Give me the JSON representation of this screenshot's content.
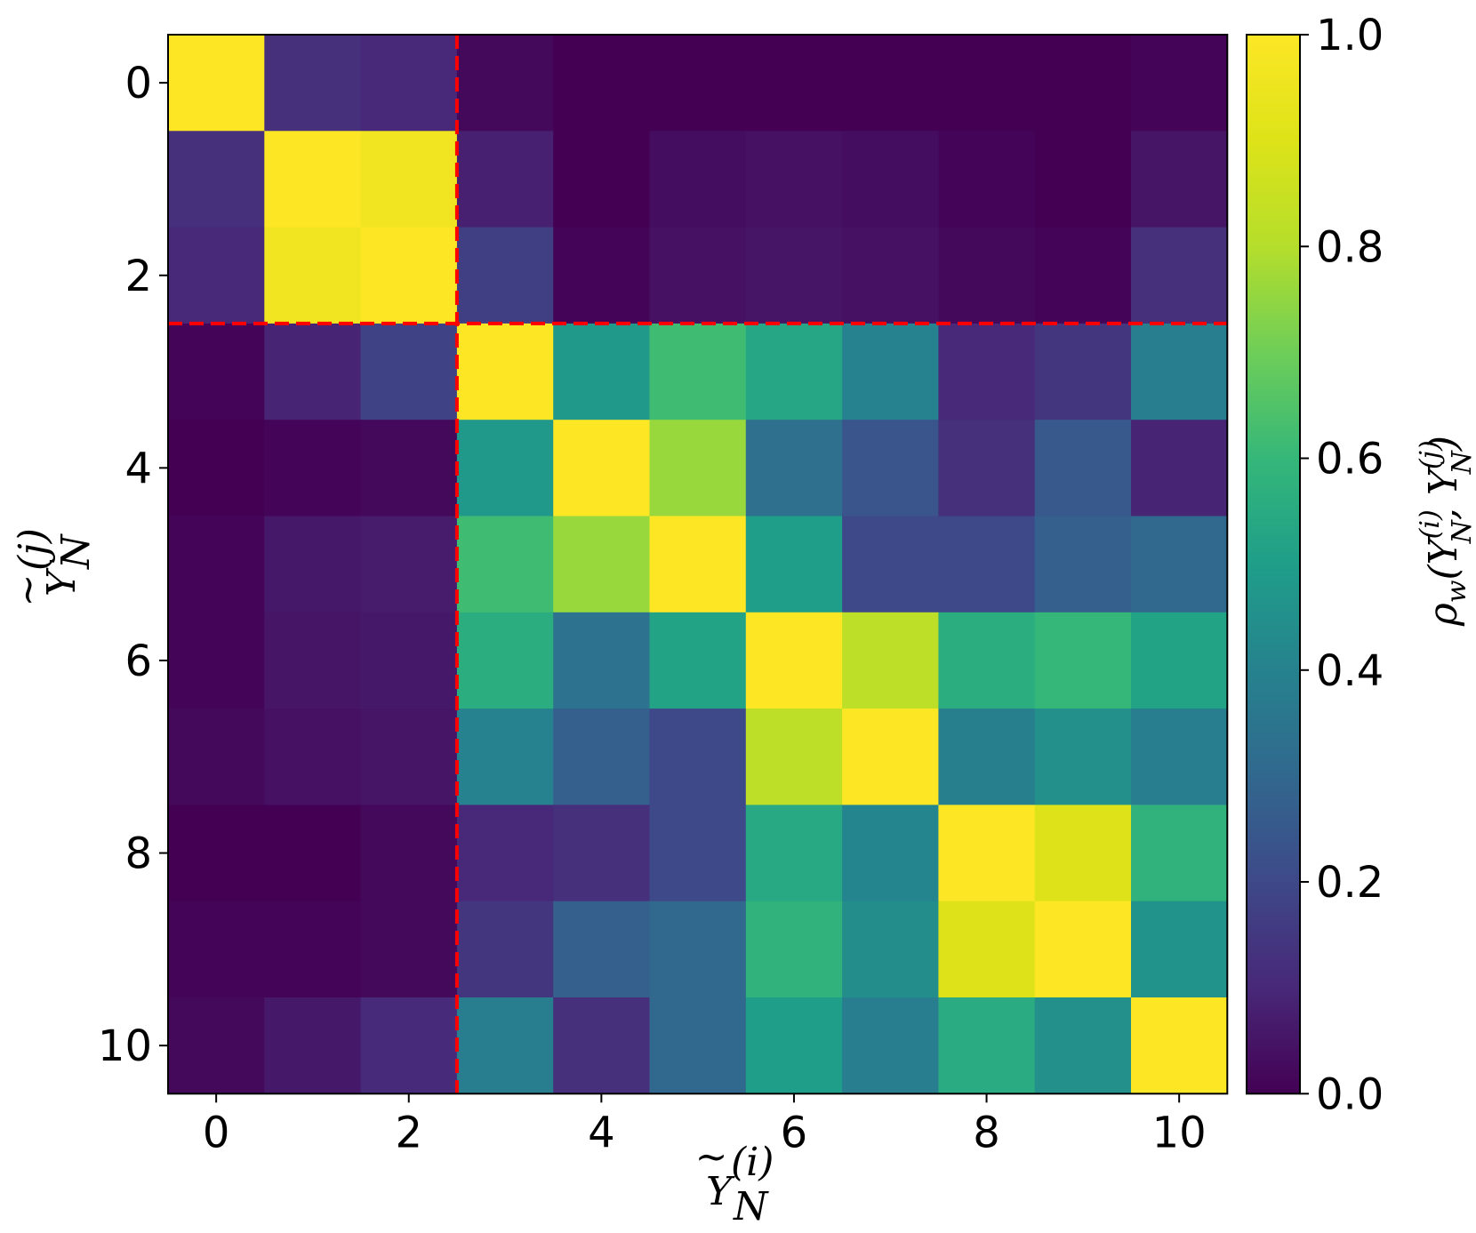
{
  "chart_data": {
    "type": "heatmap",
    "colormap": "viridis",
    "x": [
      0,
      1,
      2,
      3,
      4,
      5,
      6,
      7,
      8,
      9,
      10
    ],
    "y": [
      0,
      1,
      2,
      3,
      4,
      5,
      6,
      7,
      8,
      9,
      10
    ],
    "xticks": [
      "0",
      "2",
      "4",
      "6",
      "8",
      "10"
    ],
    "yticks": [
      "0",
      "2",
      "4",
      "6",
      "8",
      "10"
    ],
    "xlabel": {
      "base": "Y",
      "sub": "N",
      "sup": "(i)",
      "accent": "tilde"
    },
    "ylabel": {
      "base": "Y",
      "sub": "N",
      "sup": "(j)",
      "accent": "tilde"
    },
    "colorbar": {
      "range": [
        0.0,
        1.0
      ],
      "ticks": [
        "0.0",
        "0.2",
        "0.4",
        "0.6",
        "0.8",
        "1.0"
      ],
      "label": {
        "prefix": "ρ",
        "prefix_sub": "w",
        "a_sup": "(i)",
        "b_sup": "(j)"
      }
    },
    "separators": {
      "value": 2.5,
      "style": "dashed",
      "color": "#ff0000"
    },
    "values": [
      [
        1.0,
        0.12,
        0.1,
        0.02,
        0.0,
        0.0,
        0.0,
        0.0,
        0.0,
        0.0,
        0.01
      ],
      [
        0.12,
        1.0,
        0.96,
        0.08,
        0.0,
        0.03,
        0.04,
        0.03,
        0.01,
        0.0,
        0.05
      ],
      [
        0.1,
        0.96,
        1.0,
        0.17,
        0.01,
        0.04,
        0.05,
        0.04,
        0.02,
        0.01,
        0.12
      ],
      [
        0.01,
        0.09,
        0.18,
        1.0,
        0.48,
        0.62,
        0.53,
        0.4,
        0.1,
        0.14,
        0.38
      ],
      [
        0.0,
        0.01,
        0.02,
        0.48,
        1.0,
        0.76,
        0.33,
        0.24,
        0.12,
        0.25,
        0.09
      ],
      [
        0.01,
        0.06,
        0.07,
        0.62,
        0.76,
        1.0,
        0.5,
        0.2,
        0.2,
        0.27,
        0.3
      ],
      [
        0.01,
        0.05,
        0.06,
        0.56,
        0.34,
        0.52,
        1.0,
        0.82,
        0.56,
        0.6,
        0.52
      ],
      [
        0.02,
        0.04,
        0.05,
        0.4,
        0.27,
        0.2,
        0.82,
        1.0,
        0.39,
        0.45,
        0.38
      ],
      [
        0.0,
        0.0,
        0.02,
        0.1,
        0.12,
        0.2,
        0.54,
        0.41,
        1.0,
        0.9,
        0.58
      ],
      [
        0.01,
        0.01,
        0.02,
        0.14,
        0.27,
        0.3,
        0.58,
        0.44,
        0.9,
        1.0,
        0.46
      ],
      [
        0.02,
        0.06,
        0.11,
        0.38,
        0.12,
        0.3,
        0.5,
        0.38,
        0.55,
        0.45,
        1.0
      ]
    ]
  }
}
